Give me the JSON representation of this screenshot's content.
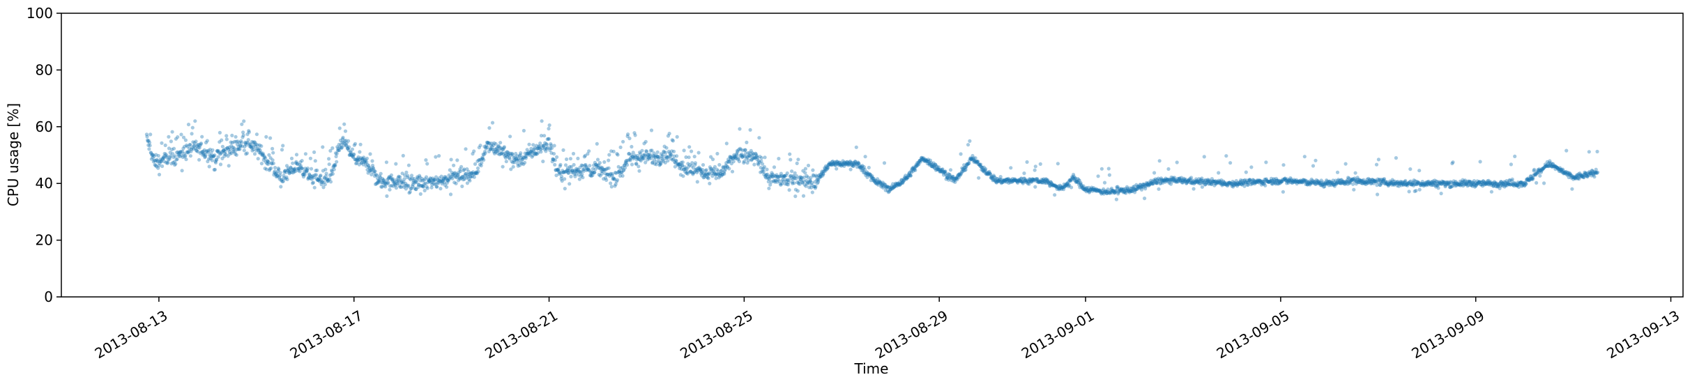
{
  "chart_data": {
    "type": "scatter",
    "title": "",
    "xlabel": "Time",
    "ylabel": "CPU usage [%]",
    "xlim": [
      "2013-08-11T00:00",
      "2013-09-13T06:00"
    ],
    "ylim": [
      0,
      100
    ],
    "y_ticks": [
      0,
      20,
      40,
      60,
      80,
      100
    ],
    "x_ticks": [
      "2013-08-13",
      "2013-08-17",
      "2013-08-21",
      "2013-08-25",
      "2013-08-29",
      "2013-09-01",
      "2013-09-05",
      "2013-09-09",
      "2013-09-13"
    ],
    "grid": false,
    "legend": false,
    "marker_color": "#1f77b4",
    "marker_alpha": 0.4,
    "series": [
      {
        "x_start": "2013-08-12T18:00",
        "x_end": "2013-09-11T12:00",
        "y_profile": [
          [
            "2013-08-12T18:00",
            56
          ],
          [
            "2013-08-12T22:00",
            47
          ],
          [
            "2013-08-13T12:00",
            51
          ],
          [
            "2013-08-13T18:00",
            53
          ],
          [
            "2013-08-14T04:00",
            49
          ],
          [
            "2013-08-14T12:00",
            52
          ],
          [
            "2013-08-14T20:00",
            55
          ],
          [
            "2013-08-15T06:00",
            48
          ],
          [
            "2013-08-15T12:00",
            42
          ],
          [
            "2013-08-15T20:00",
            46
          ],
          [
            "2013-08-16T04:00",
            42
          ],
          [
            "2013-08-16T12:00",
            41
          ],
          [
            "2013-08-16T18:00",
            55
          ],
          [
            "2013-08-17T00:00",
            49
          ],
          [
            "2013-08-17T08:00",
            46
          ],
          [
            "2013-08-17T12:00",
            41
          ],
          [
            "2013-08-18T12:00",
            40
          ],
          [
            "2013-08-19T00:00",
            42
          ],
          [
            "2013-08-19T12:00",
            44
          ],
          [
            "2013-08-19T18:00",
            54
          ],
          [
            "2013-08-20T08:00",
            48
          ],
          [
            "2013-08-20T18:00",
            52
          ],
          [
            "2013-08-21T00:00",
            54
          ],
          [
            "2013-08-21T04:00",
            44
          ],
          [
            "2013-08-22T00:00",
            45
          ],
          [
            "2013-08-22T08:00",
            42
          ],
          [
            "2013-08-22T16:00",
            49
          ],
          [
            "2013-08-23T12:00",
            50
          ],
          [
            "2013-08-23T20:00",
            45
          ],
          [
            "2013-08-24T12:00",
            43
          ],
          [
            "2013-08-24T20:00",
            50
          ],
          [
            "2013-08-25T06:00",
            49
          ],
          [
            "2013-08-25T12:00",
            42
          ],
          [
            "2013-08-26T12:00",
            41
          ],
          [
            "2013-08-26T18:00",
            47
          ],
          [
            "2013-08-27T08:00",
            47
          ],
          [
            "2013-08-27T16:00",
            41
          ],
          [
            "2013-08-28T00:00",
            38
          ],
          [
            "2013-08-28T08:00",
            42
          ],
          [
            "2013-08-28T16:00",
            49
          ],
          [
            "2013-08-29T08:00",
            41
          ],
          [
            "2013-08-29T16:00",
            49
          ],
          [
            "2013-08-30T04:00",
            41
          ],
          [
            "2013-08-31T04:00",
            41
          ],
          [
            "2013-08-31T12:00",
            38
          ],
          [
            "2013-08-31T18:00",
            42
          ],
          [
            "2013-09-01T00:00",
            38
          ],
          [
            "2013-09-01T12:00",
            37
          ],
          [
            "2013-09-02T00:00",
            38
          ],
          [
            "2013-09-02T12:00",
            41
          ],
          [
            "2013-09-03T00:00",
            41
          ],
          [
            "2013-09-04T00:00",
            40
          ],
          [
            "2013-09-05T00:00",
            41
          ],
          [
            "2013-09-06T00:00",
            40
          ],
          [
            "2013-09-06T12:00",
            41
          ],
          [
            "2013-09-07T12:00",
            40
          ],
          [
            "2013-09-08T12:00",
            40
          ],
          [
            "2013-09-09T12:00",
            40
          ],
          [
            "2013-09-10T00:00",
            40
          ],
          [
            "2013-09-10T12:00",
            47
          ],
          [
            "2013-09-11T00:00",
            42
          ],
          [
            "2013-09-11T12:00",
            44
          ]
        ]
      }
    ]
  }
}
